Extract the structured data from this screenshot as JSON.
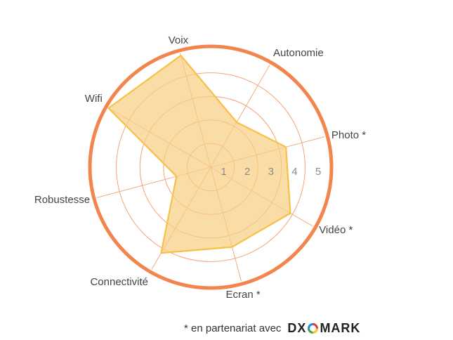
{
  "chart_data": {
    "type": "radar",
    "title": "",
    "categories": [
      "Autonomie",
      "Photo *",
      "Vidéo *",
      "Ecran *",
      "Connectivité",
      "Robustesse",
      "Wifi",
      "Voix"
    ],
    "values": [
      2.2,
      3.3,
      3.9,
      3.5,
      4.2,
      1.5,
      5.0,
      4.9
    ],
    "rlim": [
      0,
      5
    ],
    "ticks": [
      "1",
      "2",
      "3",
      "4",
      "5"
    ],
    "grid": true,
    "colors": {
      "fill": "#f8cf84",
      "stroke": "#f6c146",
      "grid": "#f4a374",
      "outer_ring": "#f2854d"
    }
  },
  "footer": {
    "note": "* en partenariat avec",
    "logo_left": "DX",
    "logo_right": "MARK"
  }
}
